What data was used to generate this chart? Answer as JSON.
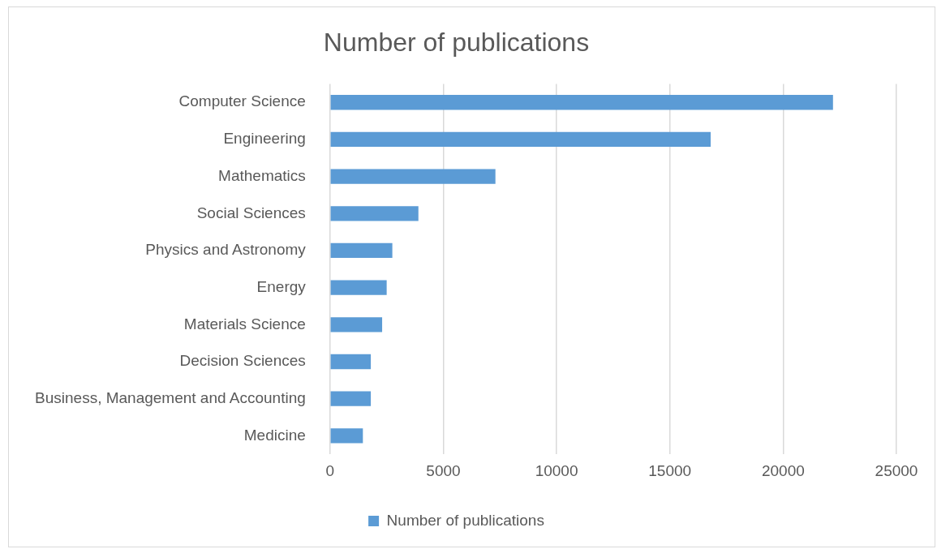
{
  "chart_data": {
    "type": "bar",
    "orientation": "horizontal",
    "title": "Number of publications",
    "categories": [
      "Computer Science",
      "Engineering",
      "Mathematics",
      "Social Sciences",
      "Physics and Astronomy",
      "Energy",
      "Materials Science",
      "Decision Sciences",
      "Business, Management and Accounting",
      "Medicine"
    ],
    "series": [
      {
        "name": "Number of publications",
        "color": "#5b9bd5",
        "values": [
          22200,
          16800,
          7300,
          3900,
          2750,
          2500,
          2300,
          1800,
          1800,
          1450
        ]
      }
    ],
    "xlim": [
      0,
      25000
    ],
    "xticks": [
      0,
      5000,
      10000,
      15000,
      20000,
      25000
    ],
    "grid": "x",
    "legend": "bottom"
  }
}
